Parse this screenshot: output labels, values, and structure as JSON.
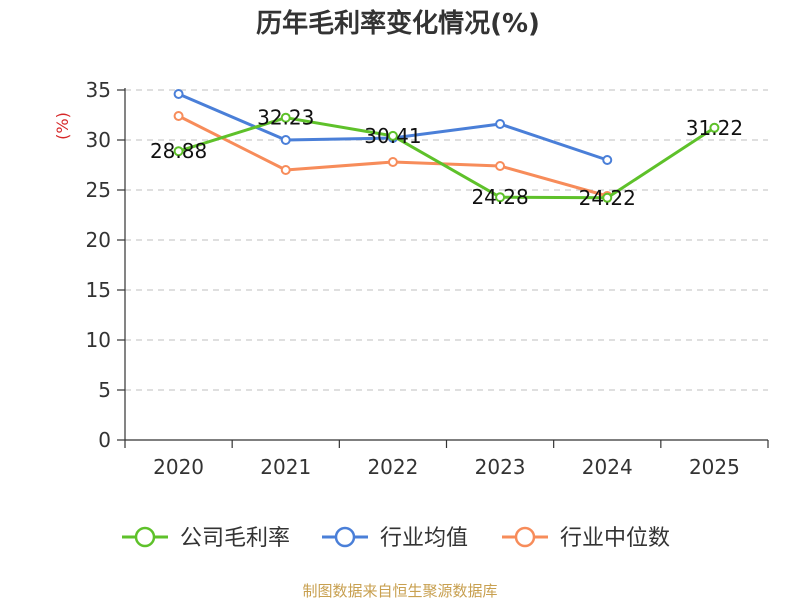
{
  "chart_data": {
    "type": "line",
    "title": "历年毛利率变化情况(%)",
    "ylabel": "(%)",
    "xlabel": "",
    "ylim": [
      0,
      35
    ],
    "yticks": [
      0,
      5,
      10,
      15,
      20,
      25,
      30,
      35
    ],
    "categories": [
      "2020",
      "2021",
      "2022",
      "2023",
      "2024",
      "2025"
    ],
    "grid": true,
    "legend_position": "bottom",
    "series": [
      {
        "name": "公司毛利率",
        "color": "#5ec12a",
        "values": [
          28.88,
          32.23,
          30.41,
          24.28,
          24.22,
          31.22
        ],
        "labels": [
          "28.88",
          "32.23",
          "30.41",
          "24.28",
          "24.22",
          "31.22"
        ]
      },
      {
        "name": "行业均值",
        "color": "#4a7fd8",
        "values": [
          34.6,
          30.0,
          30.2,
          31.6,
          28.0,
          null
        ]
      },
      {
        "name": "行业中位数",
        "color": "#f78c5a",
        "values": [
          32.4,
          27.0,
          27.8,
          27.4,
          24.4,
          null
        ]
      }
    ],
    "source": "制图数据来自恒生聚源数据库"
  }
}
